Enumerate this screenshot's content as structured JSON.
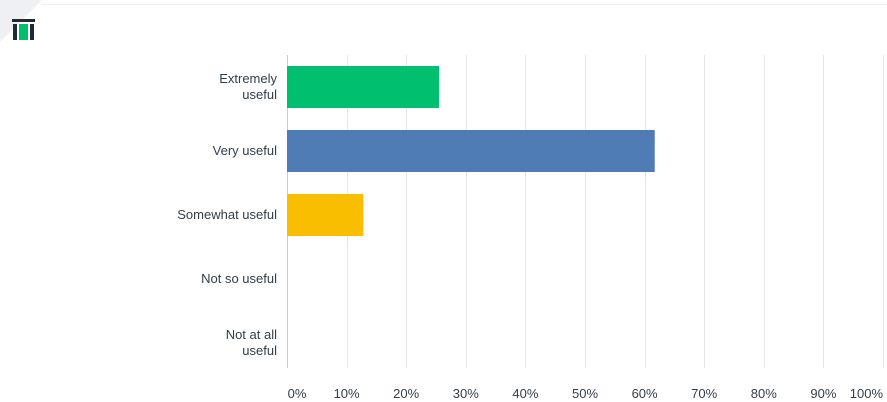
{
  "chart_data": {
    "type": "bar",
    "orientation": "horizontal",
    "categories": [
      [
        "Extremely",
        "useful"
      ],
      [
        "Very useful"
      ],
      [
        "Somewhat useful"
      ],
      [
        "Not so useful"
      ],
      [
        "Not at all",
        "useful"
      ]
    ],
    "values": [
      25.5,
      61.7,
      12.8,
      0,
      0
    ],
    "colors": [
      "#00bf6f",
      "#507cb6",
      "#f9be00",
      "#6bc8cd",
      "#9d78b7"
    ],
    "xlim": [
      0,
      100
    ],
    "x_ticks": [
      0,
      10,
      20,
      30,
      40,
      50,
      60,
      70,
      80,
      90,
      100
    ],
    "x_tick_labels": [
      "0%",
      "10%",
      "20%",
      "30%",
      "40%",
      "50%",
      "60%",
      "70%",
      "80%",
      "90%",
      "100%"
    ],
    "grid": true,
    "legend": "none"
  }
}
